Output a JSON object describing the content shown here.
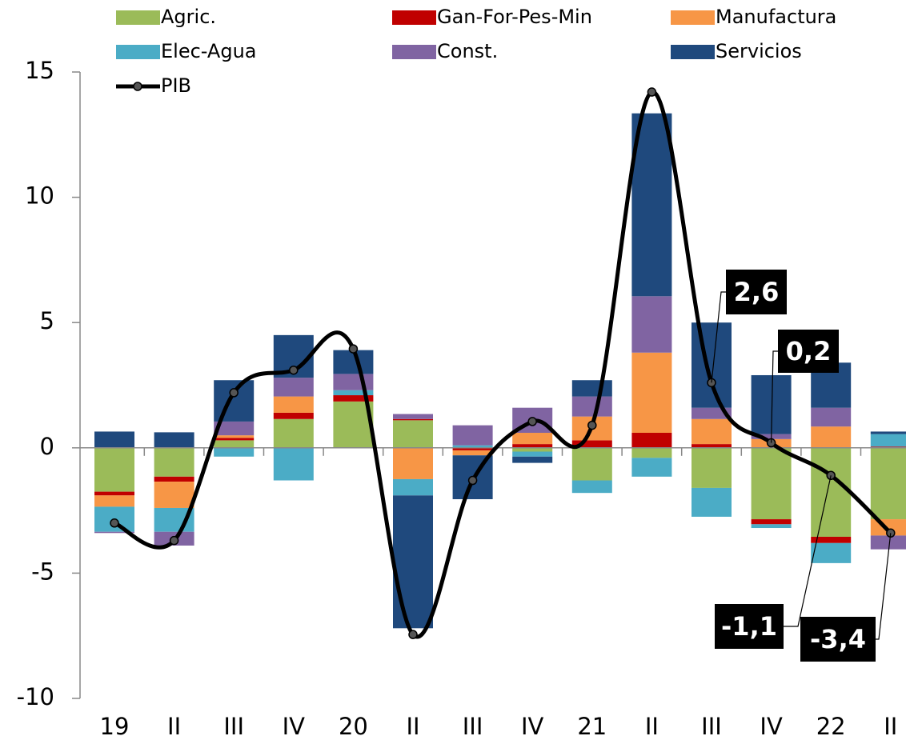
{
  "chart_data": {
    "type": "bar",
    "categories": [
      "19",
      "II",
      "III",
      "IV",
      "20",
      "II",
      "III",
      "IV",
      "21",
      "II",
      "III",
      "IV",
      "22",
      "II"
    ],
    "ylim": [
      -10,
      15
    ],
    "yticks": [
      -10,
      -5,
      0,
      5,
      10,
      15
    ],
    "stacked": true,
    "series": [
      {
        "name": "Agric.",
        "color": "#9bbb59",
        "type": "bar",
        "values": [
          -1.75,
          -1.15,
          0.3,
          1.15,
          1.85,
          1.1,
          0,
          -0.15,
          -1.3,
          -0.4,
          -1.6,
          -2.85,
          -3.55,
          -2.85
        ]
      },
      {
        "name": "Gan-For-Pes-Min",
        "color": "#c00000",
        "type": "bar",
        "values": [
          -0.15,
          -0.2,
          0.1,
          0.25,
          0.25,
          0.05,
          -0.1,
          0.15,
          0.3,
          0.6,
          0.15,
          -0.2,
          -0.25,
          0.05
        ]
      },
      {
        "name": "Manufactura",
        "color": "#f79646",
        "type": "bar",
        "values": [
          -0.45,
          -1.05,
          0.1,
          0.65,
          0,
          -1.25,
          -0.2,
          0.45,
          0.95,
          3.2,
          1.0,
          0.35,
          0.85,
          -0.65
        ]
      },
      {
        "name": "Elec-Agua",
        "color": "#4bacc6",
        "type": "bar",
        "values": [
          -1.0,
          -0.95,
          -0.35,
          -1.3,
          0.2,
          -0.65,
          0.1,
          -0.2,
          -0.5,
          -0.75,
          -1.15,
          -0.15,
          -0.8,
          0.5
        ]
      },
      {
        "name": "Const.",
        "color": "#8064a2",
        "type": "bar",
        "values": [
          -0.05,
          -0.55,
          0.55,
          0.75,
          0.65,
          0.2,
          0.8,
          1.0,
          0.8,
          2.25,
          0.45,
          0.2,
          0.75,
          -0.55
        ]
      },
      {
        "name": "Servicios",
        "color": "#1f497d",
        "type": "bar",
        "values": [
          0.65,
          0.62,
          1.65,
          1.7,
          0.95,
          -5.3,
          -1.75,
          -0.25,
          0.65,
          7.3,
          3.4,
          2.35,
          1.8,
          0.1
        ]
      },
      {
        "name": "PIB",
        "color": "#000000",
        "type": "line",
        "values": [
          -3.0,
          -3.7,
          2.2,
          3.1,
          3.95,
          -7.45,
          -1.3,
          1.05,
          0.9,
          14.2,
          2.6,
          0.2,
          -1.1,
          -3.4
        ],
        "value_labels": [
          null,
          null,
          null,
          null,
          null,
          null,
          null,
          null,
          null,
          null,
          "2,6",
          "0,2",
          "-1,1",
          "-3,4"
        ]
      }
    ]
  }
}
